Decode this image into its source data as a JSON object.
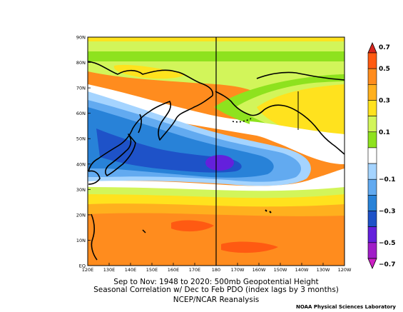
{
  "map": {
    "lat_labels": [
      "90N",
      "80N",
      "70N",
      "60N",
      "50N",
      "40N",
      "30N",
      "20N",
      "10N",
      "EQ"
    ],
    "lon_labels": [
      "120E",
      "130E",
      "140E",
      "150E",
      "160E",
      "170E",
      "180",
      "170W",
      "160W",
      "150W",
      "140W",
      "130W",
      "120W"
    ],
    "colorbar_labels": [
      "0.7",
      "0.5",
      "0.3",
      "0.1",
      "−0.1",
      "−0.3",
      "−0.5",
      "−0.7"
    ],
    "colors": {
      "pos_07": "#d8251e",
      "pos_06": "#ff5a12",
      "pos_05": "#ff8c1e",
      "pos_04": "#ffb01e",
      "pos_03": "#ffe21e",
      "pos_02": "#d2f55a",
      "pos_01": "#8ee21e",
      "neutral": "#ffffff",
      "neg_01": "#a5d4ff",
      "neg_02": "#62aaf0",
      "neg_03": "#2882d8",
      "neg_04": "#1e52c8",
      "neg_05": "#6420dc",
      "neg_06": "#a01ec8",
      "neg_07": "#cc1ec4"
    }
  },
  "caption": {
    "line1": "Sep to Nov: 1948 to 2020: 500mb Geopotential Height",
    "line2": "Seasonal Correlation w/ Dec to Feb PDO (index lags by 3 months)",
    "line3": "NCEP/NCAR Reanalysis"
  },
  "credit": "NOAA Physical Sciences Laboratory"
}
